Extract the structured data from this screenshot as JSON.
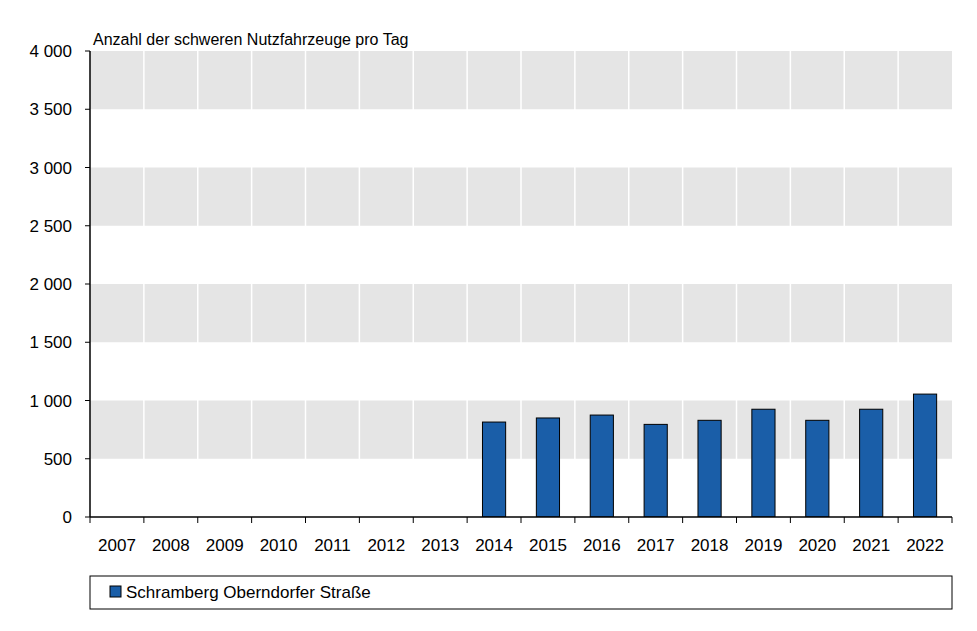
{
  "chart_data": {
    "type": "bar",
    "title": "Anzahl der schweren Nutzfahrzeuge pro Tag",
    "categories": [
      "2007",
      "2008",
      "2009",
      "2010",
      "2011",
      "2012",
      "2013",
      "2014",
      "2015",
      "2016",
      "2017",
      "2018",
      "2019",
      "2020",
      "2021",
      "2022"
    ],
    "series": [
      {
        "name": "Schramberg Oberndorfer Straße",
        "color": "#1a5ea8",
        "values": [
          null,
          null,
          null,
          null,
          null,
          null,
          null,
          815,
          850,
          875,
          795,
          830,
          925,
          830,
          925,
          1055
        ]
      }
    ],
    "ylim": [
      0,
      4000
    ],
    "yticks": [
      0,
      500,
      {
        "value": 1000,
        "label": "1 000"
      },
      {
        "value": 1500,
        "label": "1 500"
      },
      {
        "value": 2000,
        "label": "2 000"
      },
      {
        "value": 2500,
        "label": "2 500"
      },
      {
        "value": 3000,
        "label": "3 000"
      },
      {
        "value": 3500,
        "label": "3 500"
      },
      {
        "value": 4000,
        "label": "4 000"
      }
    ],
    "grid": true,
    "legend": "bottom"
  }
}
